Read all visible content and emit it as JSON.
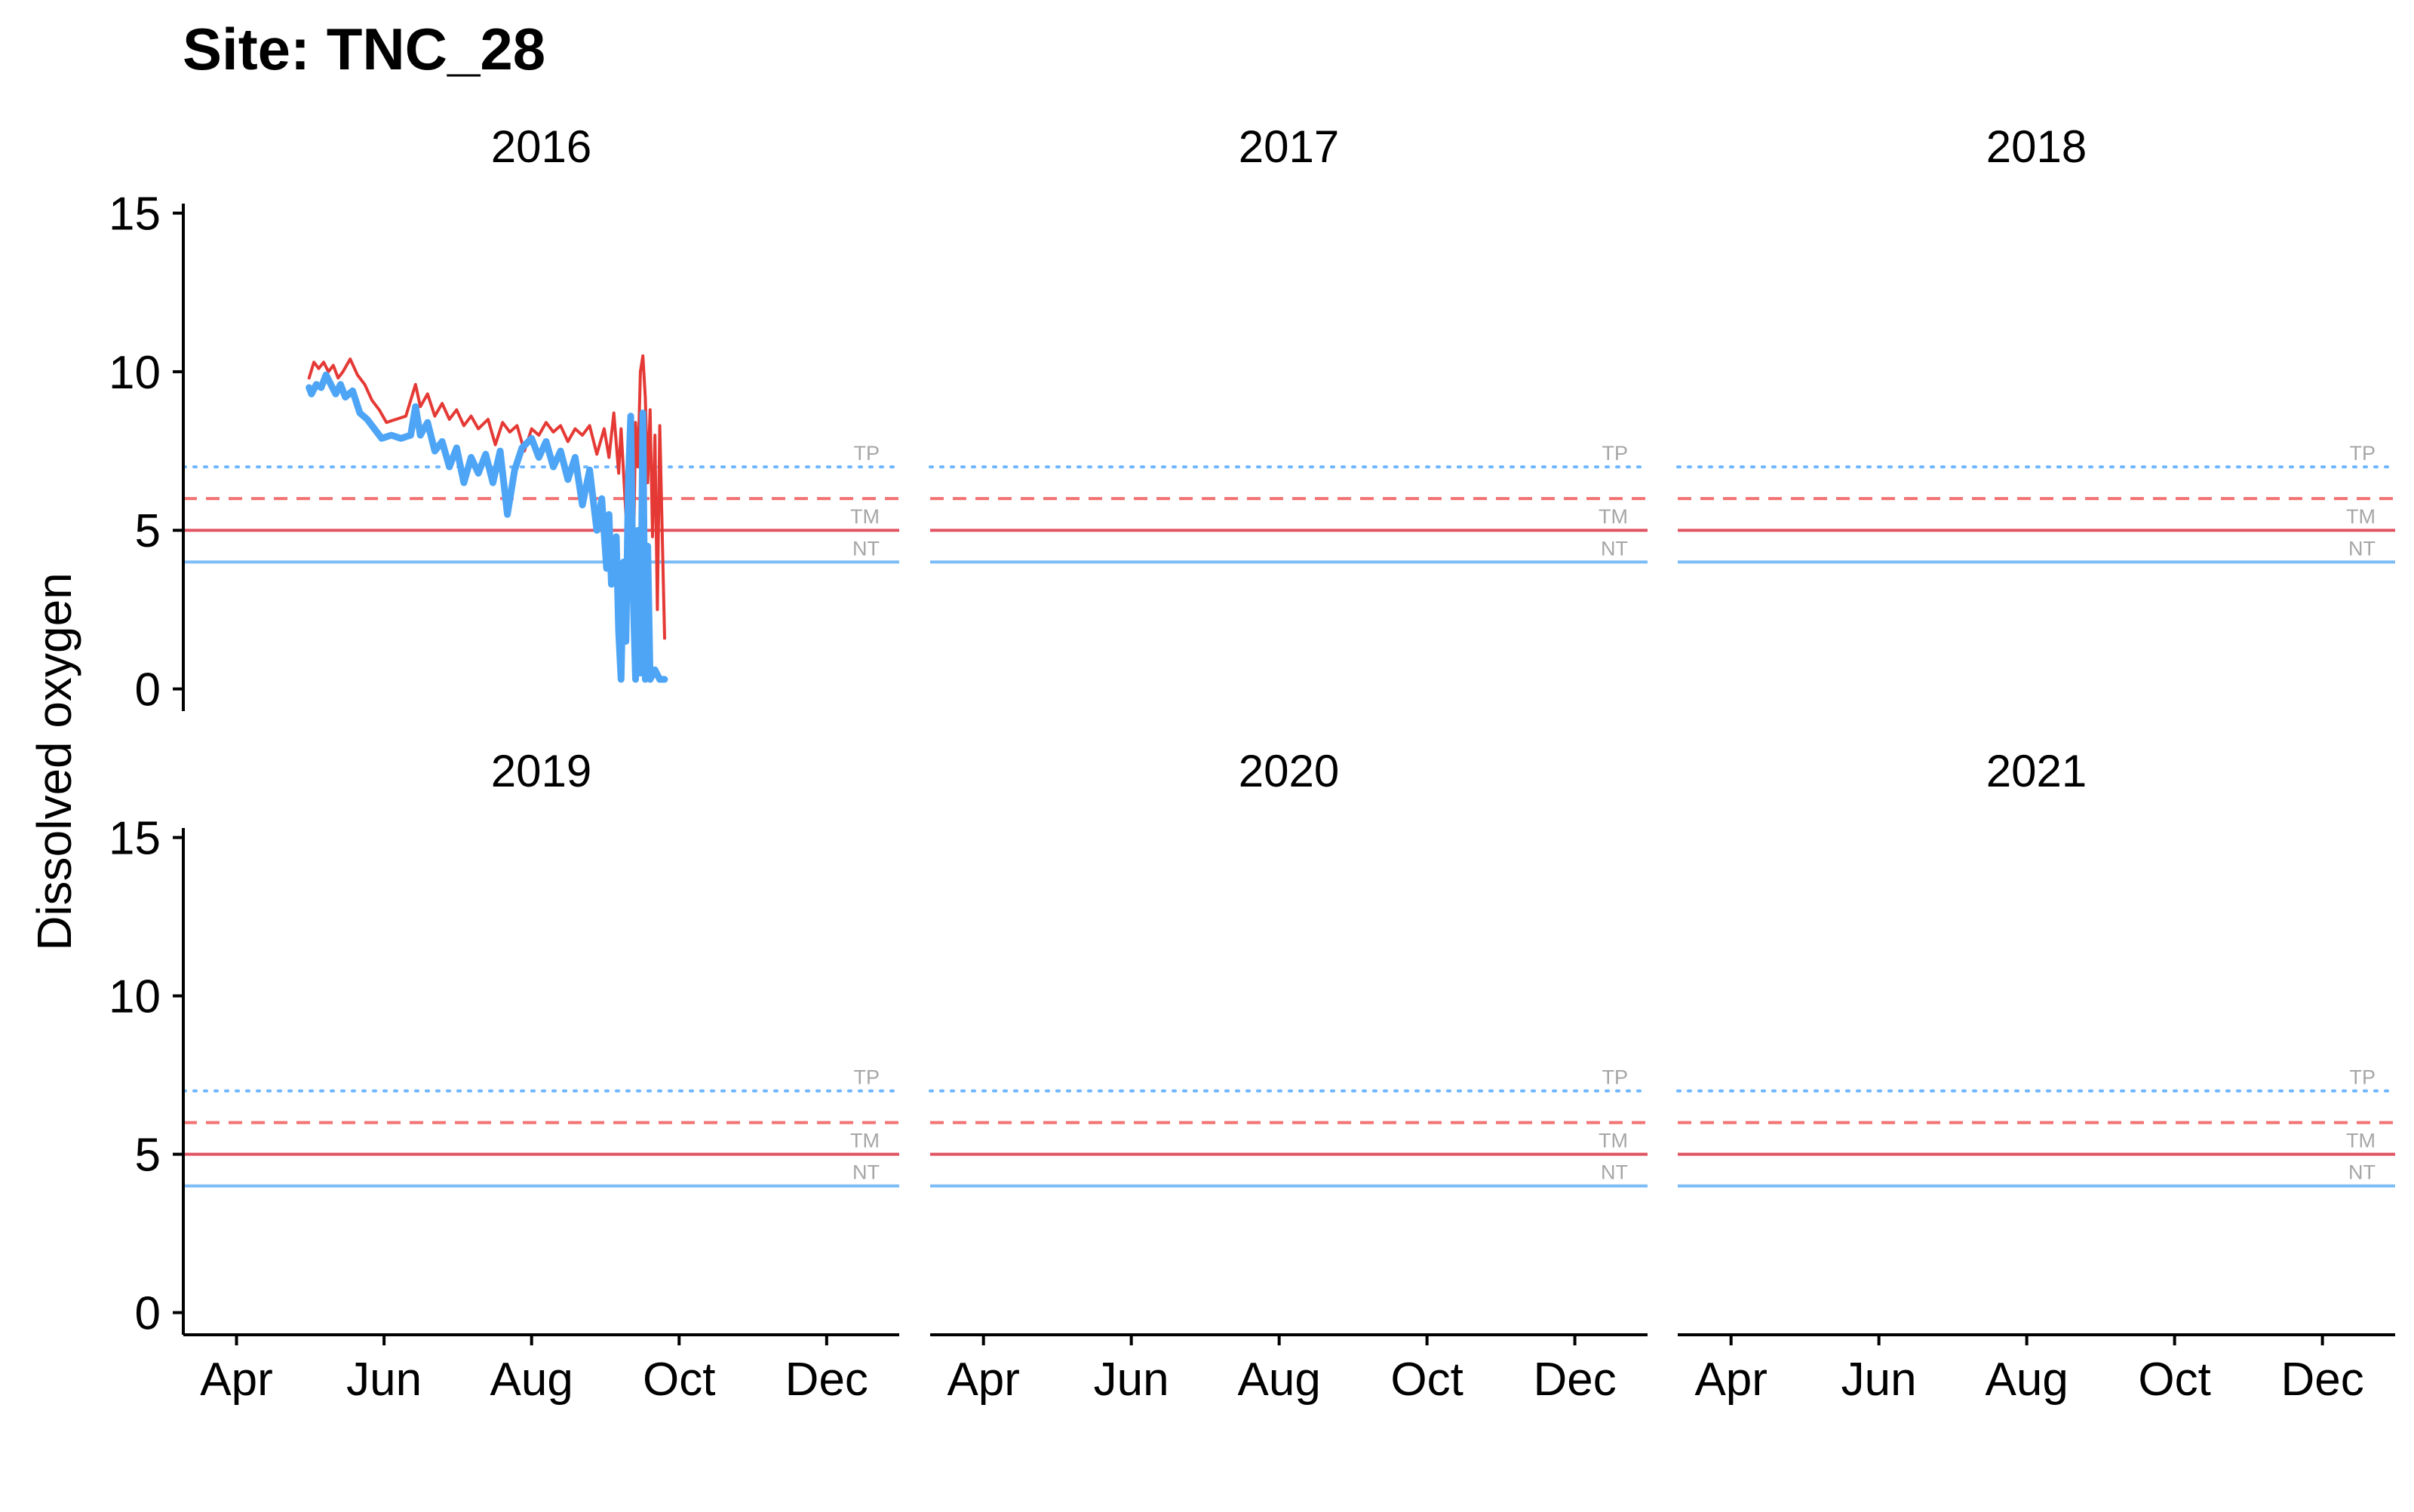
{
  "chart_data": {
    "type": "line",
    "title": "Site: TNC_28",
    "ylabel": "Dissolved oxygen",
    "xlabel": "",
    "ylim": [
      -0.7,
      15.3
    ],
    "yticks": [
      0,
      5,
      10,
      15
    ],
    "xlim": [
      "03-10",
      "12-31"
    ],
    "xticks": [
      {
        "label": "Apr",
        "date": "04-01"
      },
      {
        "label": "Jun",
        "date": "06-01"
      },
      {
        "label": "Aug",
        "date": "08-01"
      },
      {
        "label": "Oct",
        "date": "10-01"
      },
      {
        "label": "Dec",
        "date": "12-01"
      }
    ],
    "layout": {
      "cols": 3,
      "rows": 2
    },
    "panels": [
      "2016",
      "2017",
      "2018",
      "2019",
      "2020",
      "2021"
    ],
    "thresholds": [
      {
        "label": "TP",
        "value": 7,
        "color": "#6fb6ff",
        "style": "dotted"
      },
      {
        "label": "",
        "value": 6,
        "color": "#f27272",
        "style": "dashed"
      },
      {
        "label": "TM",
        "value": 5,
        "color": "#e05562",
        "style": "solid"
      },
      {
        "label": "NT",
        "value": 4,
        "color": "#7bbcf7",
        "style": "solid"
      }
    ],
    "series": [
      {
        "panel": "2016",
        "color": "#e53935",
        "points": [
          [
            "05-01",
            9.8
          ],
          [
            "05-03",
            10.3
          ],
          [
            "05-05",
            10.1
          ],
          [
            "05-07",
            10.3
          ],
          [
            "05-09",
            10.0
          ],
          [
            "05-11",
            10.2
          ],
          [
            "05-13",
            9.8
          ],
          [
            "05-15",
            10.0
          ],
          [
            "05-18",
            10.4
          ],
          [
            "05-21",
            9.9
          ],
          [
            "05-24",
            9.6
          ],
          [
            "05-27",
            9.1
          ],
          [
            "05-30",
            8.8
          ],
          [
            "06-02",
            8.4
          ],
          [
            "06-06",
            8.5
          ],
          [
            "06-10",
            8.6
          ],
          [
            "06-14",
            9.6
          ],
          [
            "06-16",
            8.9
          ],
          [
            "06-19",
            9.3
          ],
          [
            "06-22",
            8.6
          ],
          [
            "06-25",
            9.0
          ],
          [
            "06-28",
            8.5
          ],
          [
            "07-01",
            8.8
          ],
          [
            "07-04",
            8.3
          ],
          [
            "07-07",
            8.6
          ],
          [
            "07-10",
            8.2
          ],
          [
            "07-14",
            8.5
          ],
          [
            "07-17",
            7.7
          ],
          [
            "07-20",
            8.4
          ],
          [
            "07-23",
            8.1
          ],
          [
            "07-26",
            8.3
          ],
          [
            "07-29",
            7.5
          ],
          [
            "08-01",
            8.2
          ],
          [
            "08-04",
            8.0
          ],
          [
            "08-07",
            8.4
          ],
          [
            "08-10",
            8.1
          ],
          [
            "08-13",
            8.3
          ],
          [
            "08-16",
            7.8
          ],
          [
            "08-19",
            8.2
          ],
          [
            "08-22",
            8.0
          ],
          [
            "08-25",
            8.3
          ],
          [
            "08-28",
            7.4
          ],
          [
            "08-31",
            8.2
          ],
          [
            "09-02",
            7.3
          ],
          [
            "09-04",
            8.7
          ],
          [
            "09-06",
            6.8
          ],
          [
            "09-07",
            8.2
          ],
          [
            "09-09",
            5.5
          ],
          [
            "09-10",
            7.8
          ],
          [
            "09-11",
            7.3
          ],
          [
            "09-12",
            3.5
          ],
          [
            "09-13",
            8.4
          ],
          [
            "09-14",
            7.0
          ],
          [
            "09-15",
            10.0
          ],
          [
            "09-16",
            10.5
          ],
          [
            "09-17",
            9.2
          ],
          [
            "09-18",
            6.5
          ],
          [
            "09-19",
            8.8
          ],
          [
            "09-20",
            4.8
          ],
          [
            "09-21",
            8.0
          ],
          [
            "09-22",
            2.5
          ],
          [
            "09-23",
            8.3
          ],
          [
            "09-25",
            1.6
          ]
        ]
      },
      {
        "panel": "2016",
        "color": "#4ea5f5",
        "points": [
          [
            "05-01",
            9.5
          ],
          [
            "05-02",
            9.3
          ],
          [
            "05-04",
            9.6
          ],
          [
            "05-06",
            9.5
          ],
          [
            "05-08",
            9.9
          ],
          [
            "05-10",
            9.6
          ],
          [
            "05-12",
            9.3
          ],
          [
            "05-14",
            9.6
          ],
          [
            "05-16",
            9.2
          ],
          [
            "05-19",
            9.4
          ],
          [
            "05-22",
            8.7
          ],
          [
            "05-25",
            8.5
          ],
          [
            "05-28",
            8.2
          ],
          [
            "05-31",
            7.9
          ],
          [
            "06-04",
            8.0
          ],
          [
            "06-08",
            7.9
          ],
          [
            "06-12",
            8.0
          ],
          [
            "06-14",
            8.9
          ],
          [
            "06-16",
            8.0
          ],
          [
            "06-19",
            8.4
          ],
          [
            "06-22",
            7.5
          ],
          [
            "06-25",
            7.8
          ],
          [
            "06-28",
            7.0
          ],
          [
            "07-01",
            7.6
          ],
          [
            "07-04",
            6.5
          ],
          [
            "07-07",
            7.3
          ],
          [
            "07-10",
            6.8
          ],
          [
            "07-13",
            7.4
          ],
          [
            "07-16",
            6.5
          ],
          [
            "07-19",
            7.5
          ],
          [
            "07-22",
            5.5
          ],
          [
            "07-25",
            6.9
          ],
          [
            "07-28",
            7.6
          ],
          [
            "08-01",
            7.9
          ],
          [
            "08-04",
            7.3
          ],
          [
            "08-07",
            7.8
          ],
          [
            "08-10",
            7.0
          ],
          [
            "08-13",
            7.5
          ],
          [
            "08-16",
            6.6
          ],
          [
            "08-19",
            7.3
          ],
          [
            "08-22",
            5.8
          ],
          [
            "08-25",
            6.9
          ],
          [
            "08-28",
            5.0
          ],
          [
            "08-30",
            6.0
          ],
          [
            "09-01",
            3.8
          ],
          [
            "09-02",
            5.5
          ],
          [
            "09-03",
            3.3
          ],
          [
            "09-05",
            4.8
          ],
          [
            "09-06",
            1.8
          ],
          [
            "09-07",
            0.3
          ],
          [
            "09-08",
            4.0
          ],
          [
            "09-09",
            1.5
          ],
          [
            "09-10",
            6.5
          ],
          [
            "09-11",
            8.6
          ],
          [
            "09-12",
            3.0
          ],
          [
            "09-13",
            0.3
          ],
          [
            "09-14",
            5.0
          ],
          [
            "09-15",
            0.5
          ],
          [
            "09-16",
            8.7
          ],
          [
            "09-17",
            0.3
          ],
          [
            "09-18",
            4.5
          ],
          [
            "09-19",
            0.3
          ],
          [
            "09-21",
            0.6
          ],
          [
            "09-23",
            0.3
          ],
          [
            "09-25",
            0.3
          ]
        ]
      }
    ]
  }
}
